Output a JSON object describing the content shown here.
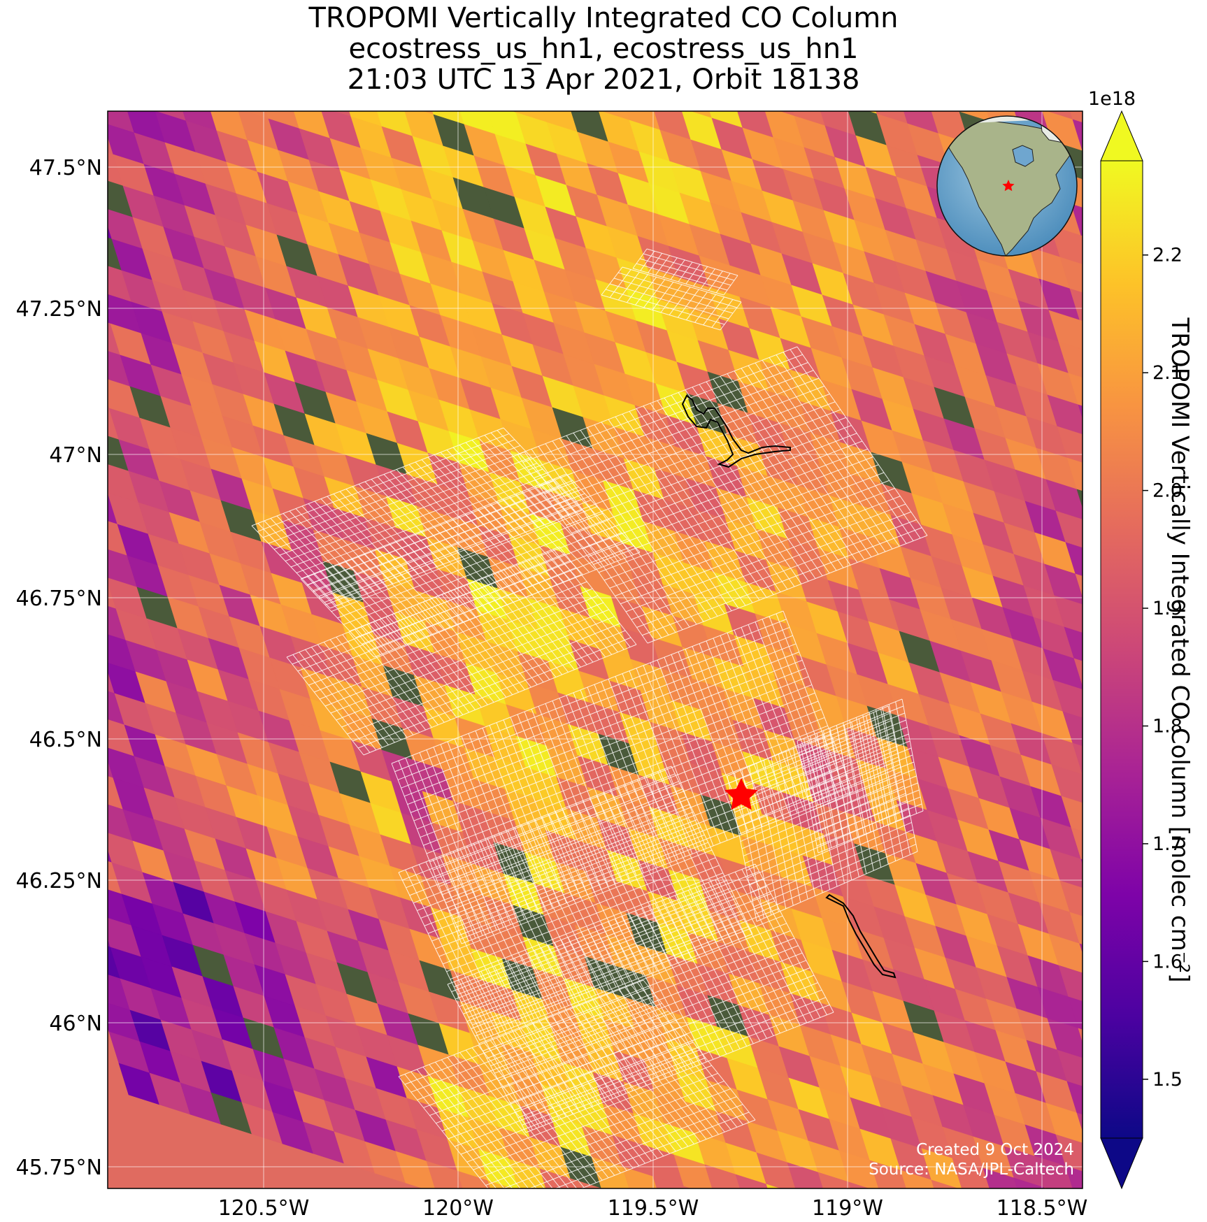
{
  "title": {
    "line1": "TROPOMI Vertically Integrated CO Column",
    "line2": "ecostress_us_hn1, ecostress_us_hn1",
    "line3": "21:03 UTC 13 Apr 2021, Orbit 18138"
  },
  "axes": {
    "lon_ticks": [
      "120.5°W",
      "120°W",
      "119.5°W",
      "119°W",
      "118.5°W"
    ],
    "lat_ticks": [
      "47.5°N",
      "47.25°N",
      "47°N",
      "46.75°N",
      "46.5°N",
      "46.25°N",
      "46°N",
      "45.75°N"
    ]
  },
  "colorbar": {
    "label": "TROPOMI Vertically Integrated CO Column [molec cm⁻²]",
    "exponent": "1e18",
    "ticks": [
      "1.5",
      "1.6",
      "1.7",
      "1.8",
      "1.9",
      "2.0",
      "2.1",
      "2.2"
    ],
    "range": [
      1.45,
      2.28
    ],
    "colormap": "plasma"
  },
  "credits": {
    "created": "Created 9 Oct 2024",
    "source": "Source: NASA/JPL-Caltech"
  },
  "marker": {
    "type": "star",
    "color": "#ff0000"
  },
  "colors": {
    "footprint_grid": "#ffffff",
    "outline": "#000000"
  }
}
